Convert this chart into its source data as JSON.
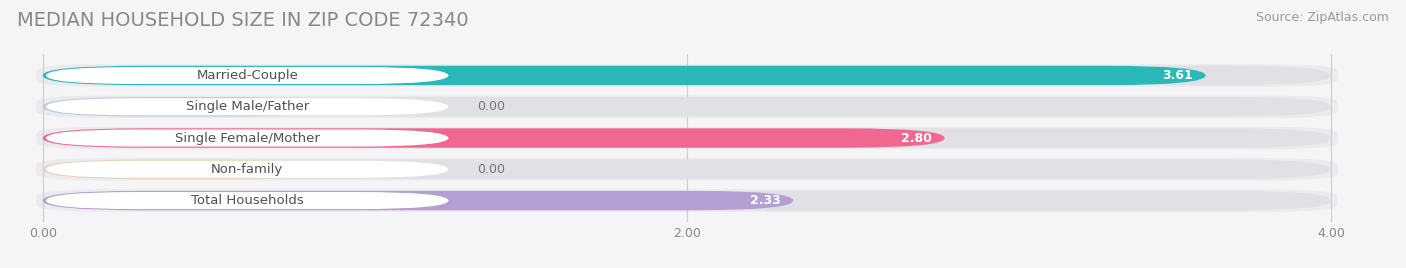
{
  "title": "MEDIAN HOUSEHOLD SIZE IN ZIP CODE 72340",
  "source": "Source: ZipAtlas.com",
  "categories": [
    "Married-Couple",
    "Single Male/Father",
    "Single Female/Mother",
    "Non-family",
    "Total Households"
  ],
  "values": [
    3.61,
    0.0,
    2.8,
    0.0,
    2.33
  ],
  "bar_colors": [
    "#2ab8b8",
    "#9db8e8",
    "#f06890",
    "#f5c890",
    "#b49fd4"
  ],
  "label_bg_colors": [
    "#2ab8b8",
    "#9db8e8",
    "#f06890",
    "#f5c890",
    "#b49fd4"
  ],
  "bar_bg_color": "#e8e8ec",
  "row_bg_color": "#f5f5f8",
  "xlim": [
    0,
    4.0
  ],
  "xticks": [
    0.0,
    2.0,
    4.0
  ],
  "xtick_labels": [
    "0.00",
    "2.00",
    "4.00"
  ],
  "title_fontsize": 14,
  "source_fontsize": 9,
  "label_fontsize": 9.5,
  "value_fontsize": 9,
  "background_color": "#f5f5f8"
}
